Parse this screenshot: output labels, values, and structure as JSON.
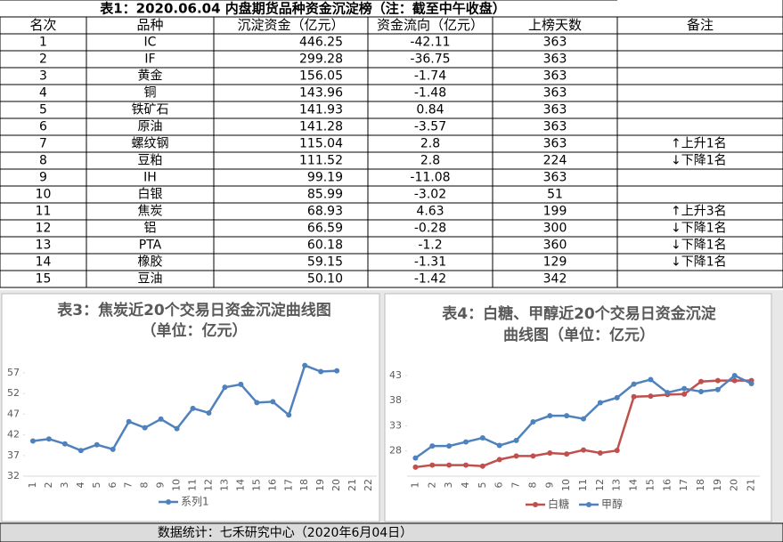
{
  "table": {
    "title": "表1：2020.06.04 内盘期货品种资金沉淀榜（注：截至中午收盘）",
    "header": [
      "名次",
      "品种",
      "沉淀资金（亿元）",
      "资金流向（亿元）",
      "上榜天数",
      "备注"
    ],
    "rows": [
      [
        "1",
        "IC",
        "446.25",
        "-42.11",
        "363",
        ""
      ],
      [
        "2",
        "IF",
        "299.28",
        "-36.75",
        "363",
        ""
      ],
      [
        "3",
        "黄金",
        "156.05",
        "-1.74",
        "363",
        ""
      ],
      [
        "4",
        "铜",
        "143.96",
        "-1.48",
        "363",
        ""
      ],
      [
        "5",
        "铁矿石",
        "141.93",
        "0.84",
        "363",
        ""
      ],
      [
        "6",
        "原油",
        "141.28",
        "-3.57",
        "363",
        ""
      ],
      [
        "7",
        "螺纹钢",
        "115.04",
        "2.8",
        "363",
        "↑上升1名"
      ],
      [
        "8",
        "豆粕",
        "111.52",
        "2.8",
        "224",
        "↓下降1名"
      ],
      [
        "9",
        "IH",
        "99.19",
        "-11.08",
        "363",
        ""
      ],
      [
        "10",
        "白银",
        "85.99",
        "-3.02",
        "51",
        ""
      ],
      [
        "11",
        "焦炭",
        "68.93",
        "4.63",
        "199",
        "↑上升3名"
      ],
      [
        "12",
        "铝",
        "66.59",
        "-0.28",
        "300",
        "↓下降1名"
      ],
      [
        "13",
        "PTA",
        "60.18",
        "-1.2",
        "360",
        "↓下降1名"
      ],
      [
        "14",
        "橡胶",
        "59.15",
        "-1.31",
        "129",
        "↓下降1名"
      ],
      [
        "15",
        "豆油",
        "50.10",
        "-1.42",
        "342",
        ""
      ]
    ]
  },
  "chart_data": [
    {
      "type": "line",
      "title": [
        "表3：焦炭近20个交易日资金沉淀曲线图",
        "（单位：亿元）"
      ],
      "categories": [
        "1",
        "2",
        "3",
        "4",
        "5",
        "6",
        "7",
        "8",
        "9",
        "10",
        "11",
        "12",
        "13",
        "14",
        "15",
        "16",
        "17",
        "18",
        "19",
        "20",
        "21",
        "22"
      ],
      "series": [
        {
          "name": "系列1",
          "color": "#4f81bd",
          "values": [
            40.5,
            41,
            39.8,
            38.2,
            39.6,
            38.5,
            45.2,
            43.7,
            45.8,
            43.5,
            48.4,
            47.3,
            53.5,
            54.2,
            49.8,
            50,
            46.8,
            58.8,
            57.3,
            57.5,
            null,
            null
          ]
        }
      ],
      "ylim": [
        32,
        60
      ],
      "yticks": [
        32,
        37,
        42,
        47,
        52,
        57
      ],
      "legend": "bottom"
    },
    {
      "type": "line",
      "title": [
        "表4：白糖、甲醇近20个交易日资金沉淀",
        "曲线图（单位：亿元）"
      ],
      "categories": [
        "1",
        "2",
        "3",
        "4",
        "5",
        "6",
        "7",
        "8",
        "9",
        "10",
        "11",
        "12",
        "13",
        "14",
        "15",
        "16",
        "17",
        "18",
        "19",
        "20",
        "21"
      ],
      "series": [
        {
          "name": "白糖",
          "color": "#c0504d",
          "values": [
            24.8,
            25.2,
            25.2,
            25.2,
            25,
            26.3,
            27,
            27,
            27.6,
            27.4,
            28.2,
            27.6,
            28.1,
            38.8,
            38.9,
            39.2,
            39.3,
            41.8,
            42,
            42,
            42
          ]
        },
        {
          "name": "甲醇",
          "color": "#4f81bd",
          "values": [
            26.6,
            29,
            29,
            29.8,
            30.6,
            29.1,
            30.1,
            33.8,
            35,
            35,
            34.4,
            37.6,
            38.6,
            41.3,
            42.2,
            39.6,
            40.4,
            39.8,
            40.2,
            43,
            41.4
          ]
        }
      ],
      "ylim": [
        23,
        46
      ],
      "yticks": [
        28,
        33,
        38,
        43
      ],
      "legend": "bottom"
    }
  ],
  "footer": "数据统计：七禾研究中心（2020年6月04日）"
}
